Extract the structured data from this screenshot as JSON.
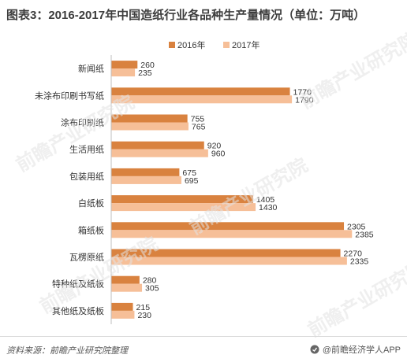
{
  "title": "图表3：2016-2017年中国造纸行业各品种生产量情况（单位：万吨）",
  "source": "资料来源：前瞻产业研究院整理",
  "brand": "@前瞻经济学人APP",
  "watermark": "前瞻产业研究院",
  "colors": {
    "s2016": "#D9823F",
    "s2017": "#F6BF98",
    "axis": "#BFBFBF",
    "text": "#333333"
  },
  "chart_data": {
    "type": "bar",
    "orientation": "horizontal",
    "legend_position": "top-right",
    "categories": [
      "新闻纸",
      "未涂布印刷书写纸",
      "涂布印刷纸",
      "生活用纸",
      "包装用纸",
      "白纸板",
      "箱纸板",
      "瓦楞原纸",
      "特种纸及纸板",
      "其他纸及纸板"
    ],
    "series": [
      {
        "name": "2016年",
        "values": [
          260,
          1770,
          755,
          920,
          675,
          1405,
          2305,
          2270,
          280,
          215
        ]
      },
      {
        "name": "2017年",
        "values": [
          235,
          1790,
          765,
          960,
          695,
          1430,
          2385,
          2335,
          305,
          230
        ]
      }
    ],
    "xlim": [
      0,
      2500
    ]
  }
}
